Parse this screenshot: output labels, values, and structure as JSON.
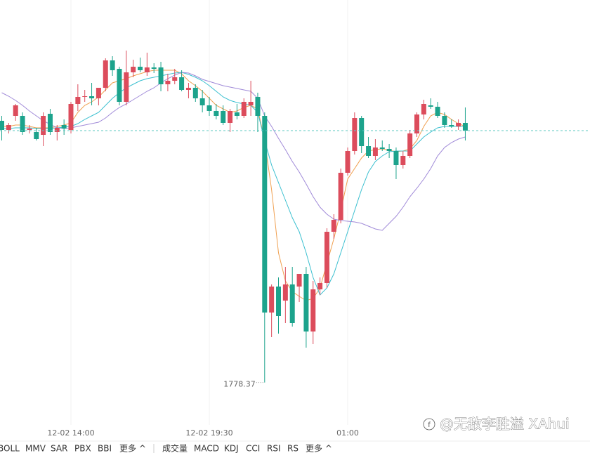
{
  "chart_data": {
    "type": "candlestick",
    "categories": [
      null,
      null,
      null,
      null,
      null,
      null,
      null,
      null,
      null,
      null,
      "12-02 14:00",
      null,
      null,
      null,
      null,
      null,
      null,
      null,
      null,
      null,
      null,
      null,
      null,
      null,
      null,
      null,
      null,
      null,
      null,
      null,
      "12-02 19:30",
      null,
      null,
      null,
      null,
      null,
      null,
      null,
      null,
      null,
      null,
      null,
      null,
      null,
      null,
      null,
      null,
      null,
      null,
      null,
      "01:00",
      null,
      null,
      null,
      null,
      null,
      null,
      null,
      null,
      null,
      null,
      null,
      null,
      null,
      null,
      null,
      null,
      null
    ],
    "open": [
      2151,
      2138,
      2158,
      2158,
      2138,
      2135,
      2131,
      2161,
      2135,
      2145,
      2138,
      2175,
      2185,
      2186,
      2183,
      2198,
      2237,
      2225,
      2178,
      2220,
      2228,
      2220,
      2227,
      2227,
      2203,
      2208,
      2213,
      2195,
      2198,
      2183,
      2173,
      2165,
      2165,
      2148,
      2163,
      2158,
      2173,
      2185,
      2158,
      1878,
      1915,
      1895,
      1918,
      1915,
      1933,
      1851,
      1911,
      1920,
      1993,
      2010,
      2077,
      2108,
      2155,
      2115,
      2101,
      2113,
      2111,
      2108,
      2088,
      2101,
      2133,
      2160,
      2173,
      2171,
      2158,
      2145,
      2143,
      2148
    ],
    "high": [
      2158,
      2148,
      2175,
      2163,
      2145,
      2141,
      2163,
      2168,
      2145,
      2153,
      2178,
      2203,
      2195,
      2205,
      2195,
      2240,
      2243,
      2228,
      2251,
      2238,
      2241,
      2248,
      2233,
      2235,
      2218,
      2225,
      2223,
      2205,
      2203,
      2195,
      2185,
      2175,
      2173,
      2168,
      2175,
      2183,
      2208,
      2191,
      2163,
      1918,
      1928,
      1943,
      1943,
      1928,
      1943,
      1923,
      1928,
      1998,
      2018,
      2083,
      2113,
      2163,
      2158,
      2128,
      2125,
      2123,
      2118,
      2113,
      2108,
      2138,
      2163,
      2181,
      2183,
      2178,
      2163,
      2153,
      2153,
      2170
    ],
    "low": [
      2123,
      2133,
      2151,
      2131,
      2133,
      2123,
      2115,
      2131,
      2123,
      2131,
      2133,
      2165,
      2178,
      2173,
      2173,
      2193,
      2215,
      2173,
      2173,
      2213,
      2220,
      2215,
      2219,
      2193,
      2193,
      2203,
      2193,
      2183,
      2178,
      2163,
      2158,
      2153,
      2145,
      2135,
      2153,
      2155,
      2158,
      2135,
      1778.37,
      1843,
      1848,
      1863,
      1858,
      1893,
      1828,
      1833,
      1903,
      1913,
      1983,
      2005,
      2073,
      2103,
      2105,
      2098,
      2095,
      2108,
      2098,
      2068,
      2083,
      2098,
      2128,
      2153,
      2168,
      2155,
      2141,
      2141,
      2138,
      2123
    ],
    "close": [
      2138,
      2145,
      2173,
      2135,
      2140,
      2125,
      2158,
      2135,
      2141,
      2140,
      2175,
      2185,
      2186,
      2183,
      2198,
      2237,
      2223,
      2178,
      2220,
      2228,
      2223,
      2227,
      2225,
      2203,
      2208,
      2213,
      2195,
      2198,
      2183,
      2173,
      2165,
      2158,
      2148,
      2165,
      2158,
      2178,
      2178,
      2158,
      1878,
      1915,
      1873,
      1918,
      1863,
      1933,
      1851,
      1911,
      1920,
      1993,
      2010,
      2077,
      2108,
      2155,
      2115,
      2101,
      2113,
      2111,
      2108,
      2088,
      2101,
      2133,
      2160,
      2175,
      2171,
      2158,
      2145,
      2143,
      2148,
      2137
    ],
    "up_color": "#dc4c5c",
    "down_color": "#1ca38c",
    "series": [
      {
        "color": "#f0a050",
        "values": [
          2143,
          2143,
          2145,
          2145,
          2143,
          2141,
          2141,
          2141,
          2143,
          2145,
          2148,
          2163,
          2173,
          2178,
          2185,
          2195,
          2205,
          2208,
          2211,
          2215,
          2218,
          2221,
          2223,
          2223,
          2223,
          2223,
          2218,
          2208,
          2201,
          2193,
          2183,
          2173,
          2168,
          2163,
          2165,
          2170,
          2173,
          2168,
          2123,
          2053,
          1963,
          1923,
          1908,
          1901,
          1895,
          1898,
          1913,
          1948,
          1983,
          2023,
          2068,
          2083,
          2098,
          2108,
          2110,
          2111,
          2109,
          2107,
          2108,
          2111,
          2123,
          2143,
          2158,
          2163,
          2160,
          2153,
          2147,
          2143
        ]
      },
      {
        "color": "#3cc0d0",
        "values": [
          2140,
          2140,
          2141,
          2141,
          2141,
          2140,
          2140,
          2140,
          2141,
          2142,
          2143,
          2147,
          2153,
          2158,
          2163,
          2173,
          2183,
          2191,
          2198,
          2203,
          2208,
          2211,
          2213,
          2215,
          2217,
          2219,
          2220,
          2217,
          2213,
          2208,
          2201,
          2193,
          2185,
          2180,
          2177,
          2175,
          2173,
          2163,
          2123,
          2088,
          2063,
          2038,
          2013,
          1993,
          1963,
          1928,
          1903,
          1913,
          1933,
          1963,
          1993,
          2023,
          2053,
          2078,
          2093,
          2101,
          2107,
          2108,
          2108,
          2108,
          2118,
          2128,
          2135,
          2141,
          2143,
          2143,
          2143,
          2143
        ]
      },
      {
        "color": "#a08ad8",
        "values": [
          2191,
          2186,
          2180,
          2173,
          2165,
          2158,
          2151,
          2146,
          2141,
          2140,
          2141,
          2143,
          2145,
          2147,
          2149,
          2155,
          2163,
          2170,
          2175,
          2181,
          2187,
          2193,
          2198,
          2205,
          2211,
          2216,
          2220,
          2219,
          2215,
          2210,
          2207,
          2204,
          2201,
          2199,
          2197,
          2195,
          2193,
          2183,
          2158,
          2143,
          2126,
          2110,
          2093,
          2078,
          2061,
          2043,
          2028,
          2018,
          2011,
          2009,
          2008,
          2007,
          2005,
          2001,
          1997,
          1995,
          2005,
          2015,
          2028,
          2043,
          2055,
          2068,
          2083,
          2101,
          2113,
          2120,
          2125,
          2128
        ]
      }
    ],
    "ylim": [
      1718,
      2323
    ],
    "grid": true,
    "annotation": "1778.37"
  },
  "toolbar": {
    "main": [
      "BOLL",
      "MMV",
      "SAR",
      "PBX",
      "BBI",
      "更多 ^"
    ],
    "sub": [
      "成交量",
      "MACD",
      "KDJ",
      "CCI",
      "RSI",
      "RS",
      "更多 ^"
    ]
  },
  "watermark": "@无敌李胜溢 XAhui"
}
